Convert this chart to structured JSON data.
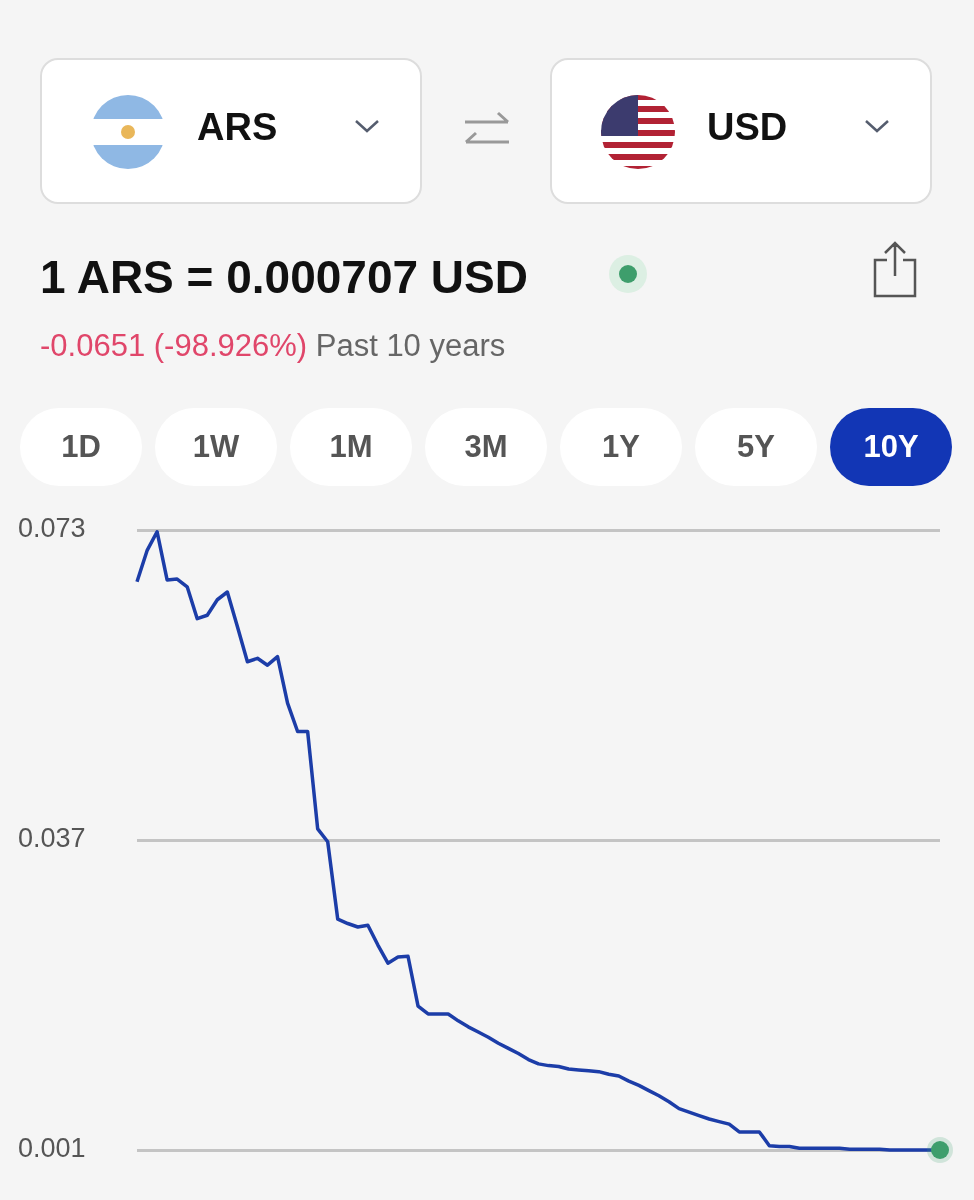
{
  "chart_data": {
    "type": "line",
    "title": "1 ARS = 0.000707 USD",
    "subtitle": "-0.0651 (-98.926%)",
    "annotations": [
      "ARS",
      "USD",
      "Past 10 years",
      "1D",
      "1W",
      "1M",
      "3M",
      "1Y",
      "5Y",
      "10Y"
    ],
    "categories": [
      null,
      null,
      null,
      null,
      null,
      null,
      null,
      null,
      null,
      null,
      null,
      null,
      null,
      null,
      null,
      null,
      null,
      null,
      null,
      null,
      null,
      null,
      null,
      null,
      null,
      null,
      null,
      null,
      null,
      null,
      null,
      null,
      null,
      null,
      null,
      null,
      null,
      null,
      null,
      null,
      null,
      null,
      null,
      null,
      null,
      null,
      null,
      null,
      null,
      null,
      null,
      null,
      null,
      null,
      null,
      null,
      null,
      null,
      null,
      null,
      null,
      null,
      null,
      null,
      null,
      null,
      null,
      null,
      null,
      null,
      null,
      null,
      null,
      null,
      null,
      null,
      null,
      null,
      null,
      null,
      null
    ],
    "series": [
      {
        "color": "#1c3da8",
        "values": [
          0.067,
          0.0706,
          0.0728,
          0.0672,
          0.0673,
          0.0664,
          0.0627,
          0.0631,
          0.0649,
          0.0658,
          0.0618,
          0.0577,
          0.0581,
          0.0573,
          0.0583,
          0.0529,
          0.0496,
          0.0496,
          0.0383,
          0.0368,
          0.0278,
          0.0273,
          0.0269,
          0.0271,
          0.0248,
          0.0227,
          0.0234,
          0.0235,
          0.0177,
          0.0168,
          0.0168,
          0.0168,
          0.016,
          0.0153,
          0.0147,
          0.0141,
          0.0134,
          0.0128,
          0.0122,
          0.0115,
          0.011,
          0.0108,
          0.0107,
          0.0104,
          0.0103,
          0.0102,
          0.0101,
          0.0098,
          0.0096,
          0.009,
          0.0085,
          0.0079,
          0.0073,
          0.0066,
          0.0058,
          0.0054,
          0.005,
          0.0046,
          0.0043,
          0.004,
          0.0031,
          0.0031,
          0.0031,
          0.0015,
          0.0014,
          0.0014,
          0.0012,
          0.0012,
          0.0012,
          0.0012,
          0.0012,
          0.0011,
          0.0011,
          0.0011,
          0.0011,
          0.001,
          0.001,
          0.001,
          0.001,
          0.001,
          0.001
        ]
      }
    ],
    "ylim": [
      0.001,
      0.073
    ],
    "yticks": [
      0.073,
      0.037,
      0.001
    ],
    "grid": "y",
    "tick_labels": "y",
    "line_style": "solid",
    "legend": false
  }
}
